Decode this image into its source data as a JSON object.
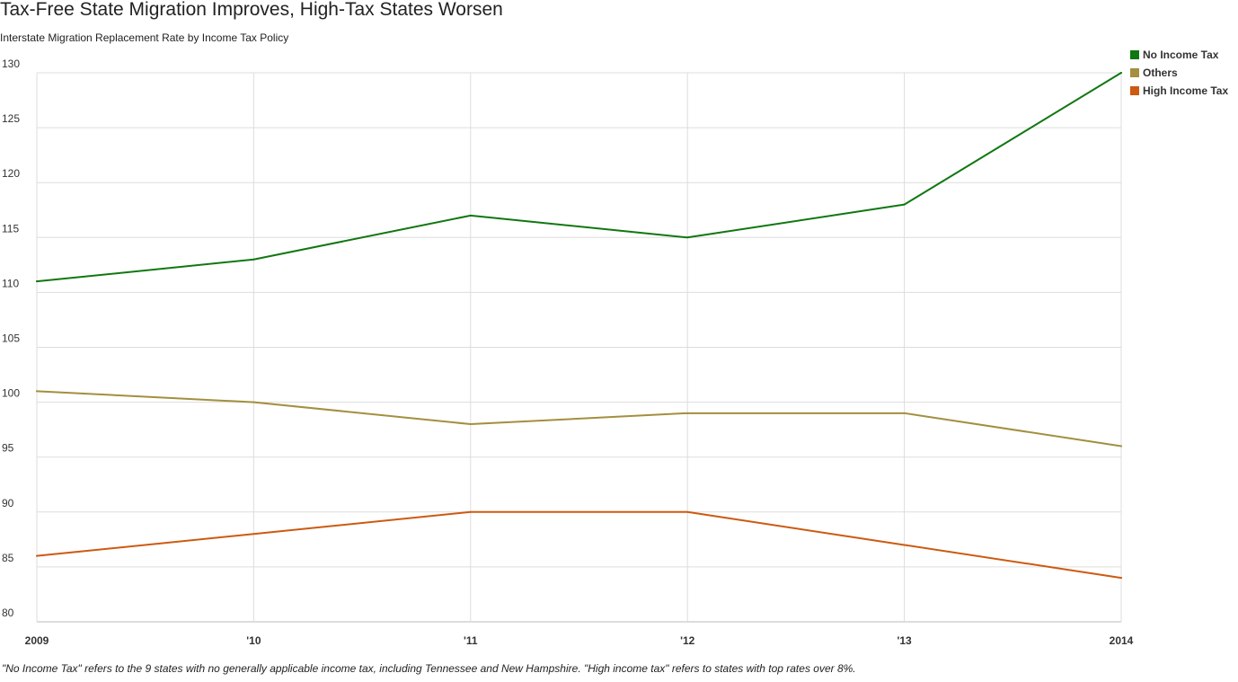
{
  "chart_data": {
    "type": "line",
    "title": "Tax-Free State Migration Improves, High-Tax States Worsen",
    "subtitle": "Interstate Migration Replacement Rate by Income Tax Policy",
    "footnote": "\"No Income Tax\" refers to the 9 states with no generally applicable income tax, including Tennessee and New Hampshire. \"High income tax\" refers to states with top rates over 8%.",
    "x": [
      2009,
      2010,
      2011,
      2012,
      2013,
      2014
    ],
    "x_tick_labels": [
      "2009",
      "'10",
      "'11",
      "'12",
      "'13",
      "2014"
    ],
    "ylim": [
      80,
      130
    ],
    "y_ticks": [
      130,
      125,
      120,
      115,
      110,
      105,
      100,
      95,
      90,
      85,
      80
    ],
    "grid": true,
    "legend_position": "top-right",
    "series": [
      {
        "name": "No Income Tax",
        "color": "#117711",
        "values": [
          111,
          113,
          117,
          115,
          118,
          130
        ]
      },
      {
        "name": "Others",
        "color": "#a38f3e",
        "values": [
          101,
          100,
          98,
          99,
          99,
          96
        ]
      },
      {
        "name": "High Income Tax",
        "color": "#cc5a11",
        "values": [
          86,
          88,
          90,
          90,
          87,
          84
        ]
      }
    ]
  }
}
